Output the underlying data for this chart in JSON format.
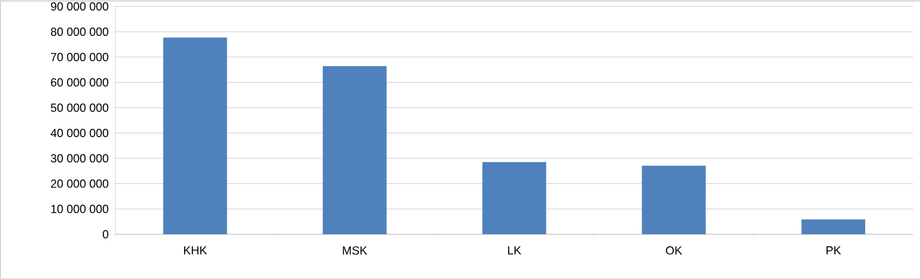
{
  "chart_data": {
    "type": "bar",
    "categories": [
      "KHK",
      "MSK",
      "LK",
      "OK",
      "PK"
    ],
    "values": [
      77700000,
      66400000,
      28500000,
      27100000,
      5900000
    ],
    "color": "#4f81bd",
    "ylim": [
      0,
      90000000
    ],
    "yticks": [
      {
        "value": 0,
        "label": "0"
      },
      {
        "value": 10000000,
        "label": "10 000 000"
      },
      {
        "value": 20000000,
        "label": "20 000 000"
      },
      {
        "value": 30000000,
        "label": "30 000 000"
      },
      {
        "value": 40000000,
        "label": "40 000 000"
      },
      {
        "value": 50000000,
        "label": "50 000 000"
      },
      {
        "value": 60000000,
        "label": "60 000 000"
      },
      {
        "value": 70000000,
        "label": "70 000 000"
      },
      {
        "value": 80000000,
        "label": "80 000 000"
      },
      {
        "value": 90000000,
        "label": "90 000 000"
      }
    ],
    "grid": "y"
  }
}
